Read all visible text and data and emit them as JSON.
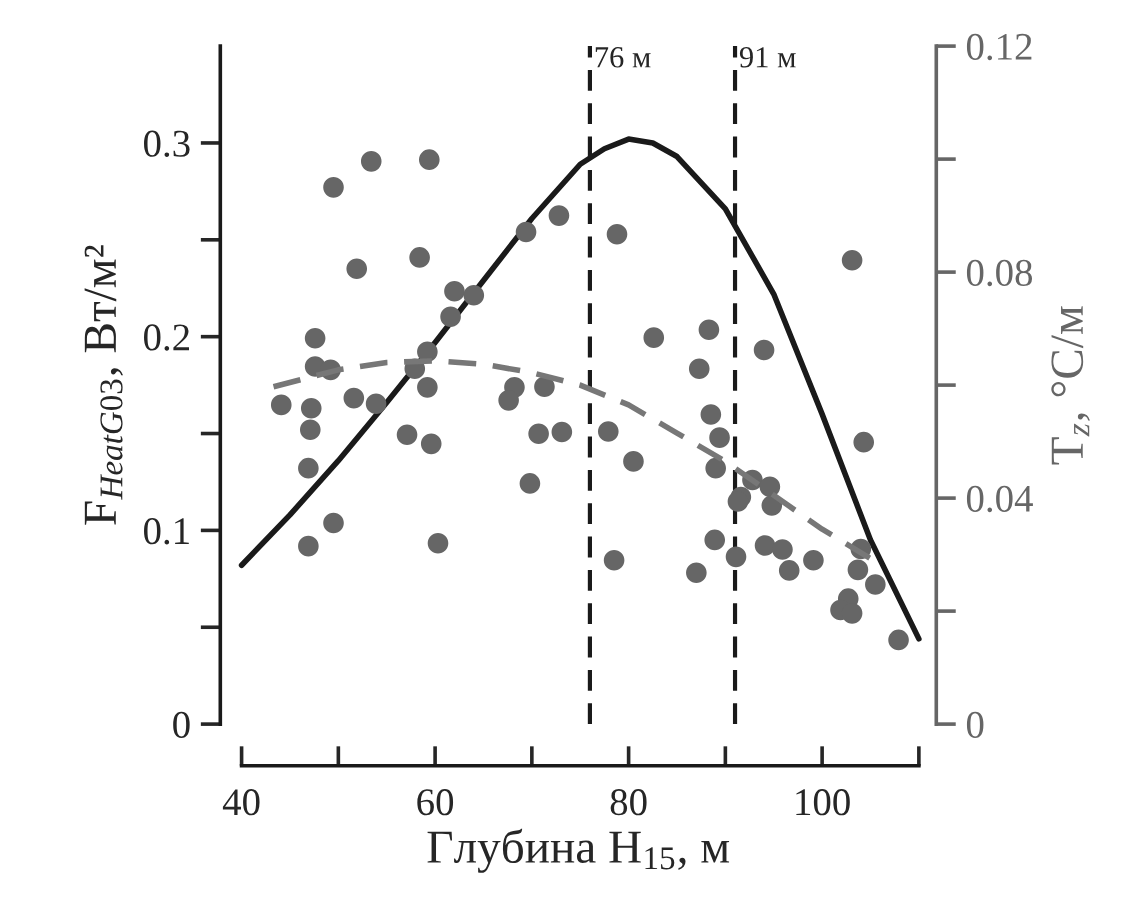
{
  "chart_data": {
    "type": "scatter",
    "xlabel": "Глубина H$_{15}$, м",
    "ylabel": "F$_{HeatG03}$, Вт/м²",
    "y2label": "T$_{z}$, °C/м",
    "xlim": [
      37.8,
      111.8
    ],
    "xticks": [
      40,
      {
        "value": 50,
        "label": null
      },
      60,
      {
        "value": 70,
        "label": null
      },
      80,
      {
        "value": 90,
        "label": null
      },
      100,
      {
        "value": 110,
        "label": null
      }
    ],
    "ylim": [
      0,
      0.35
    ],
    "yticks": [
      0,
      {
        "value": 0.05,
        "label": null
      },
      0.1,
      {
        "value": 0.15,
        "label": null
      },
      0.2,
      {
        "value": 0.25,
        "label": null
      },
      0.3
    ],
    "y2lim": [
      0,
      0.12
    ],
    "y2ticks": [
      0,
      {
        "value": 0.02,
        "label": null
      },
      0.04,
      {
        "value": 0.06,
        "label": null
      },
      0.08,
      {
        "value": 0.1,
        "label": null
      },
      0.12
    ],
    "ref_lines": [
      {
        "axis": "x",
        "value": 76,
        "label": "76 м",
        "color": "#1a1a1a",
        "line_style": "dashed"
      },
      {
        "axis": "x",
        "value": 91,
        "label": "91 м",
        "color": "#1a1a1a",
        "line_style": "dashed"
      }
    ],
    "series": [
      {
        "type": "line",
        "color": "#1a1a1a",
        "line_style": "solid",
        "x": [
          40,
          45,
          50,
          55,
          60,
          65,
          70,
          75,
          77.5,
          80,
          82.5,
          85,
          90,
          95,
          100,
          105,
          110
        ],
        "values": [
          0.082,
          0.108,
          0.136,
          0.166,
          0.197,
          0.229,
          0.261,
          0.289,
          0.297,
          0.302,
          0.3,
          0.293,
          0.266,
          0.222,
          0.16,
          0.095,
          0.044
        ]
      },
      {
        "type": "line",
        "axis": "y2",
        "color": "#777777",
        "line_style": "dashed",
        "x": [
          43.3,
          50,
          55,
          60,
          65,
          70,
          75,
          80,
          85,
          90,
          95,
          100,
          105.3
        ],
        "values": [
          0.0597,
          0.0627,
          0.064,
          0.0643,
          0.0637,
          0.0622,
          0.06,
          0.0565,
          0.0515,
          0.0465,
          0.0405,
          0.0345,
          0.029
        ]
      },
      {
        "axis": "y2",
        "color": "#666666",
        "marker": "circle",
        "x": [
          49.5,
          53.4,
          59.4,
          51.9,
          58.4,
          62.0,
          64.0,
          61.6,
          59.2,
          69.4,
          72.8,
          78.8,
          103.1,
          47.6,
          82.6,
          88.3,
          94.0,
          87.3,
          47.6,
          49.2,
          57.9,
          59.2,
          68.2,
          71.3,
          44.1,
          47.2,
          51.6,
          53.9,
          47.1,
          57.1,
          59.6,
          46.9,
          49.5,
          46.9,
          60.3,
          67.6,
          70.7,
          73.1,
          69.8,
          77.9,
          80.5,
          78.5,
          88.5,
          89.4,
          89.0,
          88.9,
          87.0,
          91.1,
          91.6,
          91.3,
          92.8,
          94.6,
          94.8,
          94.1,
          95.9,
          96.6,
          99.1,
          104.3,
          104.0,
          103.7,
          105.5,
          102.7,
          101.9,
          103.1,
          107.9
        ],
        "values": [
          0.095,
          0.0996,
          0.0999,
          0.0806,
          0.0826,
          0.0766,
          0.0759,
          0.0721,
          0.0659,
          0.0871,
          0.09,
          0.0867,
          0.0821,
          0.0683,
          0.0684,
          0.0698,
          0.0662,
          0.0629,
          0.0633,
          0.0627,
          0.0629,
          0.0596,
          0.0596,
          0.0597,
          0.0565,
          0.0559,
          0.0577,
          0.0567,
          0.0521,
          0.0512,
          0.0496,
          0.0453,
          0.0356,
          0.0315,
          0.032,
          0.0573,
          0.0514,
          0.0517,
          0.0426,
          0.0518,
          0.0465,
          0.029,
          0.0548,
          0.0507,
          0.0453,
          0.0326,
          0.0268,
          0.0296,
          0.0402,
          0.0394,
          0.0432,
          0.042,
          0.0387,
          0.0316,
          0.0309,
          0.0272,
          0.029,
          0.0499,
          0.031,
          0.0273,
          0.0247,
          0.0222,
          0.0202,
          0.0196,
          0.0149
        ]
      }
    ]
  }
}
